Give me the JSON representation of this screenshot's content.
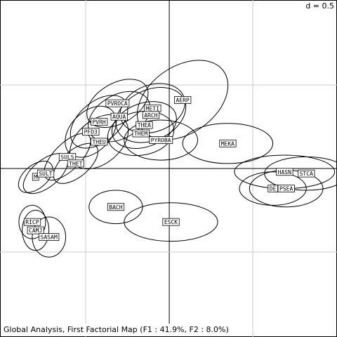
{
  "chart_data": {
    "type": "class-map",
    "scale_label": "d = 0.5",
    "caption": "Global Analysis, First Factorial Map (F1 : 41.9%, F2 : 8.0%)",
    "xlim": [
      -1.013,
      1.004
    ],
    "ylim": [
      -1.008,
      1.008
    ],
    "xticks": [
      -0.5,
      0,
      0.5
    ],
    "yticks": [
      -0.5,
      0,
      0.5
    ],
    "grid": true,
    "groups": [
      {
        "name": "AERP",
        "x": 0.08,
        "y": 0.41,
        "rx": 0.3,
        "ry": 0.2,
        "angle": 35
      },
      {
        "name": "PVROCA",
        "x": -0.31,
        "y": 0.39,
        "rx": 0.2,
        "ry": 0.12,
        "angle": 30
      },
      {
        "name": "METI",
        "x": -0.1,
        "y": 0.36,
        "rx": 0.2,
        "ry": 0.14,
        "angle": 20
      },
      {
        "name": "AQUA",
        "x": -0.3,
        "y": 0.31,
        "rx": 0.2,
        "ry": 0.13,
        "angle": 30
      },
      {
        "name": "ARCH",
        "x": -0.11,
        "y": 0.32,
        "rx": 0.22,
        "ry": 0.15,
        "angle": 25
      },
      {
        "name": "PVRH",
        "x": -0.42,
        "y": 0.28,
        "rx": 0.2,
        "ry": 0.12,
        "angle": 40
      },
      {
        "name": "THEA",
        "x": -0.15,
        "y": 0.26,
        "rx": 0.2,
        "ry": 0.13,
        "angle": 20
      },
      {
        "name": "PFD3",
        "x": -0.47,
        "y": 0.22,
        "rx": 0.18,
        "ry": 0.12,
        "angle": 45
      },
      {
        "name": "THEM",
        "x": -0.17,
        "y": 0.21,
        "rx": 0.2,
        "ry": 0.13,
        "angle": 10
      },
      {
        "name": "THEU",
        "x": -0.42,
        "y": 0.16,
        "rx": 0.2,
        "ry": 0.13,
        "angle": 40
      },
      {
        "name": "PYROBA",
        "x": -0.05,
        "y": 0.17,
        "rx": 0.22,
        "ry": 0.12,
        "angle": 0
      },
      {
        "name": "MEKA",
        "x": 0.35,
        "y": 0.15,
        "rx": 0.27,
        "ry": 0.12,
        "angle": 0
      },
      {
        "name": "SULS",
        "x": -0.61,
        "y": 0.07,
        "rx": 0.18,
        "ry": 0.08,
        "angle": 45
      },
      {
        "name": "THET",
        "x": -0.56,
        "y": 0.03,
        "rx": 0.16,
        "ry": 0.08,
        "angle": 40
      },
      {
        "name": "M",
        "x": -0.8,
        "y": -0.05,
        "rx": 0.12,
        "ry": 0.07,
        "angle": 40
      },
      {
        "name": "SULT",
        "x": -0.74,
        "y": -0.03,
        "rx": 0.16,
        "ry": 0.08,
        "angle": 40
      },
      {
        "name": "HASN",
        "x": 0.69,
        "y": -0.02,
        "rx": 0.3,
        "ry": 0.1,
        "angle": 0
      },
      {
        "name": "STCA",
        "x": 0.82,
        "y": -0.03,
        "rx": 0.25,
        "ry": 0.1,
        "angle": 0
      },
      {
        "name": "DE",
        "x": 0.62,
        "y": -0.12,
        "rx": 0.2,
        "ry": 0.1,
        "angle": 0
      },
      {
        "name": "PSEA",
        "x": 0.7,
        "y": -0.12,
        "rx": 0.22,
        "ry": 0.11,
        "angle": 0
      },
      {
        "name": "BACH",
        "x": -0.32,
        "y": -0.23,
        "rx": 0.16,
        "ry": 0.1,
        "angle": 0
      },
      {
        "name": "ESCK",
        "x": 0.01,
        "y": -0.32,
        "rx": 0.28,
        "ry": 0.115,
        "angle": 0
      },
      {
        "name": "RICP",
        "x": -0.82,
        "y": -0.32,
        "rx": 0.08,
        "ry": 0.1,
        "angle": 0
      },
      {
        "name": "CAMJ",
        "x": -0.8,
        "y": -0.37,
        "rx": 0.08,
        "ry": 0.12,
        "angle": 0
      },
      {
        "name": "SASAM",
        "x": -0.72,
        "y": -0.41,
        "rx": 0.1,
        "ry": 0.12,
        "angle": 0
      }
    ]
  }
}
